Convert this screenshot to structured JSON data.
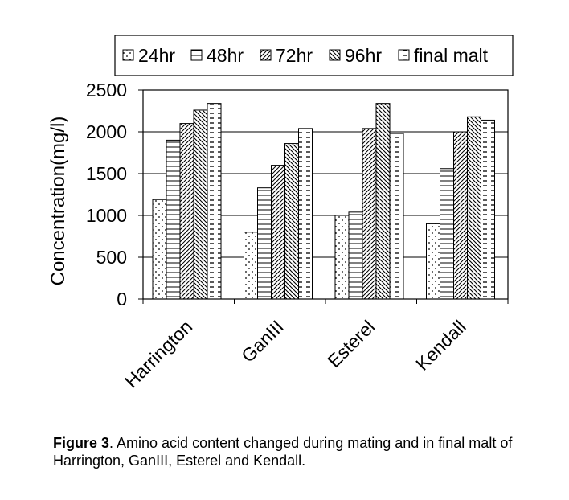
{
  "chart_data": {
    "type": "bar",
    "categories": [
      "Harrington",
      "GanIII",
      "Esterel",
      "Kendall"
    ],
    "series": [
      {
        "name": "24hr",
        "pattern": "dots",
        "values": [
          1190,
          800,
          1000,
          900
        ]
      },
      {
        "name": "48hr",
        "pattern": "hlines",
        "values": [
          1900,
          1330,
          1040,
          1560
        ]
      },
      {
        "name": "72hr",
        "pattern": "diag",
        "values": [
          2100,
          1600,
          2040,
          2000
        ]
      },
      {
        "name": "96hr",
        "pattern": "crosshatch",
        "values": [
          2260,
          1860,
          2340,
          2180
        ]
      },
      {
        "name": "final malt",
        "pattern": "dashes",
        "values": [
          2340,
          2040,
          1980,
          2140
        ]
      }
    ],
    "ylabel": "Concentration(mg/l)",
    "ylim": [
      0,
      2500
    ],
    "yticks": [
      0,
      500,
      1000,
      1500,
      2000,
      2500
    ],
    "grid": true,
    "legend": "top"
  },
  "caption": {
    "label": "Figure 3",
    "text": ". Amino acid content changed during mating and in final malt of Harrington, GanIII, Esterel and Kendall."
  }
}
